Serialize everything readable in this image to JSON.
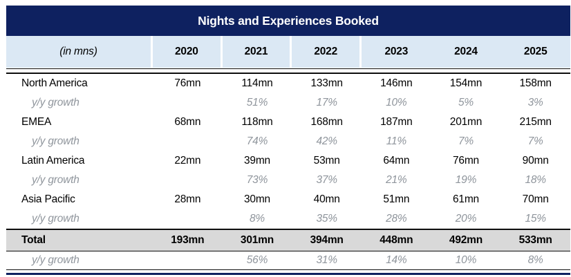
{
  "title": "Nights and Experiences Booked",
  "unit_label": "(in mns)",
  "growth_label": "y/y growth",
  "years": [
    "2020",
    "2021",
    "2022",
    "2023",
    "2024",
    "2025"
  ],
  "rows": [
    {
      "label": "North America",
      "values": [
        "76mn",
        "114mn",
        "133mn",
        "146mn",
        "154mn",
        "158mn"
      ],
      "growth": [
        "",
        "51%",
        "17%",
        "10%",
        "5%",
        "3%"
      ]
    },
    {
      "label": "EMEA",
      "values": [
        "68mn",
        "118mn",
        "168mn",
        "187mn",
        "201mn",
        "215mn"
      ],
      "growth": [
        "",
        "74%",
        "42%",
        "11%",
        "7%",
        "7%"
      ]
    },
    {
      "label": "Latin America",
      "values": [
        "22mn",
        "39mn",
        "53mn",
        "64mn",
        "76mn",
        "90mn"
      ],
      "growth": [
        "",
        "73%",
        "37%",
        "21%",
        "19%",
        "18%"
      ]
    },
    {
      "label": "Asia Pacific",
      "values": [
        "28mn",
        "30mn",
        "40mn",
        "51mn",
        "61mn",
        "70mn"
      ],
      "growth": [
        "",
        "8%",
        "35%",
        "28%",
        "20%",
        "15%"
      ]
    }
  ],
  "total": {
    "label": "Total",
    "values": [
      "193mn",
      "301mn",
      "394mn",
      "448mn",
      "492mn",
      "533mn"
    ],
    "growth": [
      "",
      "56%",
      "31%",
      "14%",
      "10%",
      "8%"
    ]
  },
  "colors": {
    "navy": "#0e2160",
    "header_blue": "#dbe8f4",
    "total_gray": "#d9d9d9",
    "growth_gray": "#8f959c"
  },
  "chart_data": {
    "type": "table",
    "title": "Nights and Experiences Booked",
    "unit": "millions of nights and experiences",
    "categories": [
      "2020",
      "2021",
      "2022",
      "2023",
      "2024",
      "2025"
    ],
    "series": [
      {
        "name": "North America",
        "values": [
          76,
          114,
          133,
          146,
          154,
          158
        ],
        "yoy_growth_pct": [
          null,
          51,
          17,
          10,
          5,
          3
        ]
      },
      {
        "name": "EMEA",
        "values": [
          68,
          118,
          168,
          187,
          201,
          215
        ],
        "yoy_growth_pct": [
          null,
          74,
          42,
          11,
          7,
          7
        ]
      },
      {
        "name": "Latin America",
        "values": [
          22,
          39,
          53,
          64,
          76,
          90
        ],
        "yoy_growth_pct": [
          null,
          73,
          37,
          21,
          19,
          18
        ]
      },
      {
        "name": "Asia Pacific",
        "values": [
          28,
          30,
          40,
          51,
          61,
          70
        ],
        "yoy_growth_pct": [
          null,
          8,
          35,
          28,
          20,
          15
        ]
      },
      {
        "name": "Total",
        "values": [
          193,
          301,
          394,
          448,
          492,
          533
        ],
        "yoy_growth_pct": [
          null,
          56,
          31,
          14,
          10,
          8
        ]
      }
    ]
  }
}
